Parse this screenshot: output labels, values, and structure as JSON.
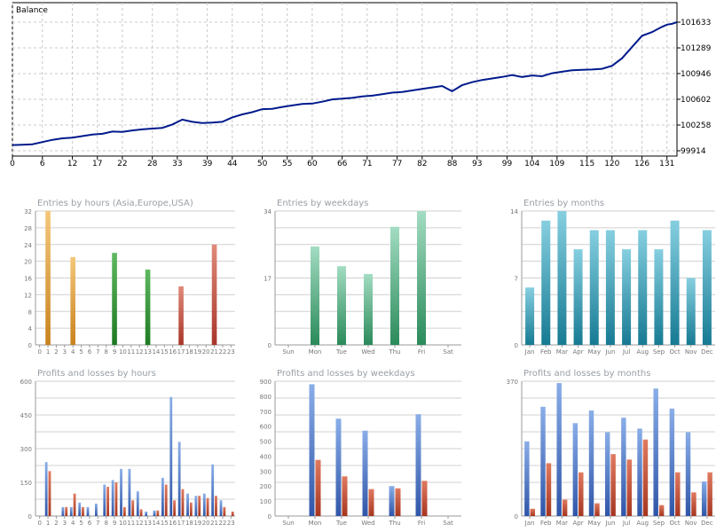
{
  "chart_data": [
    {
      "type": "line",
      "title": "Balance",
      "x_ticks": [
        "0",
        "6",
        "12",
        "17",
        "22",
        "28",
        "33",
        "39",
        "44",
        "50",
        "55",
        "60",
        "66",
        "71",
        "77",
        "82",
        "88",
        "93",
        "99",
        "104",
        "109",
        "115",
        "120",
        "126",
        "131"
      ],
      "y_ticks": [
        "101633",
        "101289",
        "100946",
        "100602",
        "100258",
        "99914"
      ],
      "xlim": [
        0,
        133
      ],
      "ylim": [
        99914,
        101633
      ],
      "grid": true,
      "series": [
        {
          "x": [
            0,
            2,
            4,
            6,
            8,
            10,
            12,
            14,
            16,
            18,
            20,
            22,
            24,
            26,
            28,
            30,
            32,
            34,
            36,
            38,
            40,
            42,
            44,
            46,
            48,
            50,
            52,
            54,
            56,
            58,
            60,
            62,
            64,
            66,
            68,
            70,
            72,
            74,
            76,
            78,
            80,
            82,
            84,
            86,
            88,
            90,
            92,
            94,
            96,
            98,
            100,
            102,
            104,
            106,
            108,
            110,
            112,
            114,
            116,
            118,
            120,
            122,
            124,
            126,
            128,
            130,
            131,
            132,
            133
          ],
          "y": [
            99990,
            99995,
            100000,
            100030,
            100060,
            100080,
            100090,
            100110,
            100130,
            100140,
            100170,
            100165,
            100185,
            100200,
            100210,
            100220,
            100265,
            100330,
            100300,
            100285,
            100290,
            100300,
            100360,
            100400,
            100430,
            100470,
            100475,
            100500,
            100520,
            100540,
            100545,
            100570,
            100600,
            100610,
            100620,
            100640,
            100650,
            100670,
            100690,
            100700,
            100720,
            100740,
            100760,
            100780,
            100710,
            100790,
            100830,
            100860,
            100880,
            100900,
            100925,
            100900,
            100920,
            100910,
            100950,
            100970,
            100990,
            100995,
            101000,
            101010,
            101050,
            101150,
            101300,
            101450,
            101500,
            101570,
            101600,
            101610,
            101633
          ]
        }
      ]
    },
    {
      "type": "bar",
      "title": "Entries by hours (Asia,Europe,USA)",
      "categories": [
        "0",
        "1",
        "2",
        "3",
        "4",
        "5",
        "6",
        "7",
        "8",
        "9",
        "10",
        "11",
        "12",
        "13",
        "14",
        "15",
        "16",
        "17",
        "18",
        "19",
        "20",
        "21",
        "22",
        "23"
      ],
      "values": [
        0,
        32,
        0,
        0,
        21,
        0,
        0,
        0,
        0,
        22,
        0,
        0,
        0,
        18,
        0,
        0,
        0,
        14,
        0,
        0,
        0,
        24,
        0,
        0
      ],
      "ylim": [
        0,
        32
      ],
      "y_ticks": [
        "32",
        "28",
        "24",
        "20",
        "16",
        "12",
        "8",
        "4",
        "0"
      ]
    },
    {
      "type": "bar",
      "title": "Entries by weekdays",
      "categories": [
        "Sun",
        "Mon",
        "Tue",
        "Wed",
        "Thu",
        "Fri",
        "Sat"
      ],
      "values": [
        0,
        25,
        20,
        18,
        30,
        34,
        0
      ],
      "ylim": [
        0,
        34
      ],
      "y_ticks": [
        "34",
        "17",
        "0"
      ]
    },
    {
      "type": "bar",
      "title": "Entries by months",
      "categories": [
        "Jan",
        "Feb",
        "Mar",
        "Apr",
        "May",
        "Jun",
        "Jul",
        "Aug",
        "Sep",
        "Oct",
        "Nov",
        "Dec"
      ],
      "values": [
        6,
        13,
        14,
        10,
        12,
        12,
        10,
        12,
        10,
        13,
        7,
        12
      ],
      "ylim": [
        0,
        14
      ],
      "y_ticks": [
        "14",
        "7",
        "0"
      ]
    },
    {
      "type": "bar",
      "title": "Profits and losses by hours",
      "categories": [
        "0",
        "1",
        "2",
        "3",
        "4",
        "5",
        "6",
        "7",
        "8",
        "9",
        "10",
        "11",
        "12",
        "13",
        "14",
        "15",
        "16",
        "17",
        "18",
        "19",
        "20",
        "21",
        "22",
        "23"
      ],
      "series": [
        {
          "values": [
            0,
            240,
            0,
            40,
            40,
            60,
            40,
            55,
            140,
            160,
            210,
            210,
            110,
            20,
            25,
            170,
            530,
            330,
            100,
            90,
            100,
            230,
            70,
            0
          ]
        },
        {
          "values": [
            0,
            200,
            0,
            40,
            100,
            40,
            0,
            0,
            130,
            150,
            40,
            70,
            30,
            0,
            25,
            140,
            70,
            120,
            60,
            90,
            80,
            90,
            40,
            20
          ]
        }
      ],
      "ylim": [
        0,
        600
      ],
      "y_ticks": [
        "600",
        "450",
        "300",
        "150",
        "0"
      ]
    },
    {
      "type": "bar",
      "title": "Profits and losses by weekdays",
      "categories": [
        "Sun",
        "Mon",
        "Tue",
        "Wed",
        "Thu",
        "Fri",
        "Sat"
      ],
      "series": [
        {
          "values": [
            0,
            880,
            650,
            570,
            200,
            680,
            0
          ]
        },
        {
          "values": [
            0,
            375,
            265,
            180,
            185,
            235,
            0
          ]
        }
      ],
      "ylim": [
        0,
        900
      ],
      "y_ticks": [
        "900",
        "800",
        "700",
        "600",
        "500",
        "400",
        "300",
        "200",
        "100",
        "0"
      ]
    },
    {
      "type": "bar",
      "title": "Profits and losses by months",
      "categories": [
        "Jan",
        "Feb",
        "Mar",
        "Apr",
        "May",
        "Jun",
        "Jul",
        "Aug",
        "Sep",
        "Oct",
        "Nov",
        "Dec"
      ],
      "series": [
        {
          "values": [
            205,
            300,
            365,
            255,
            290,
            230,
            270,
            240,
            350,
            295,
            230,
            95
          ]
        },
        {
          "values": [
            20,
            145,
            45,
            120,
            35,
            170,
            155,
            210,
            30,
            120,
            65,
            120
          ]
        }
      ],
      "ylim": [
        0,
        370
      ],
      "y_ticks": [
        "370",
        "0"
      ]
    }
  ]
}
